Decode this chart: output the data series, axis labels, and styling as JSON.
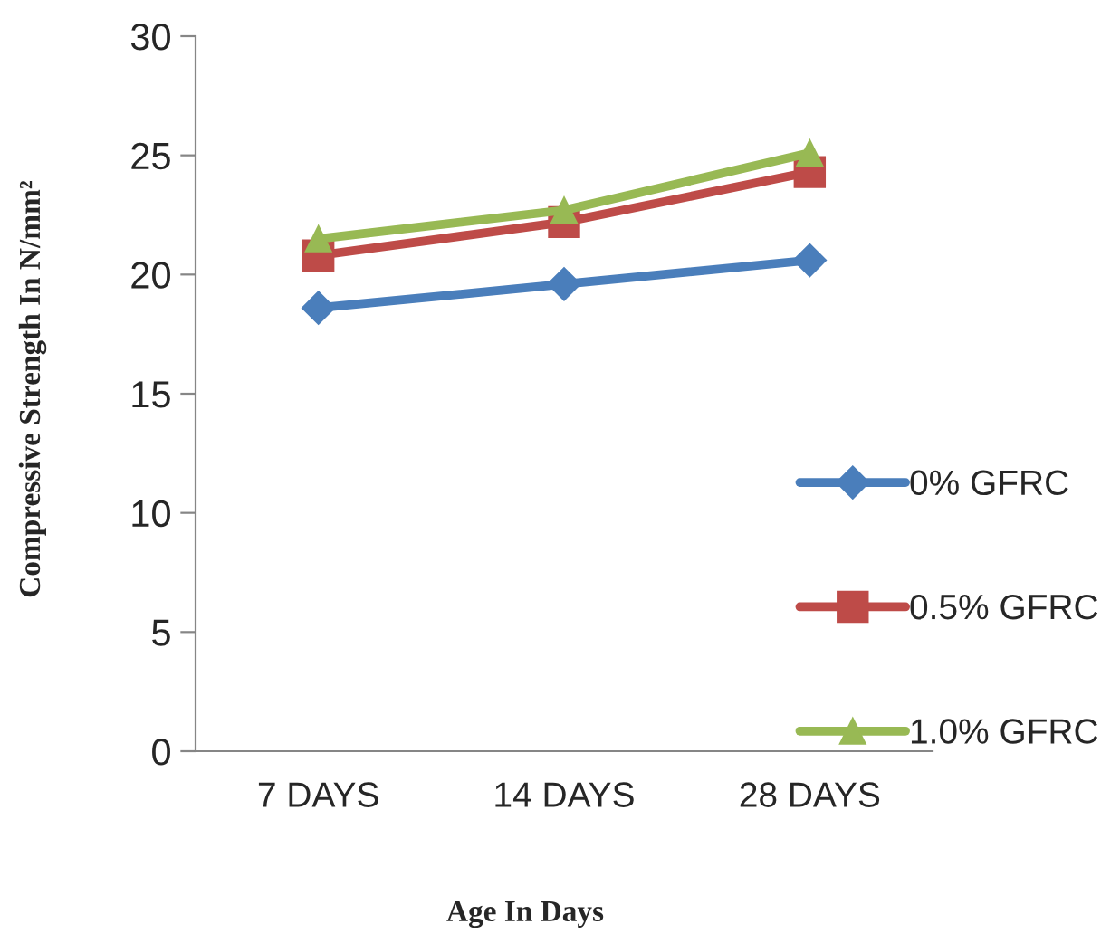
{
  "chart_data": {
    "type": "line",
    "xlabel": "Age In Days",
    "ylabel": "Compressive Strength In N/mm²",
    "categories": [
      "7 DAYS",
      "14 DAYS",
      "28 DAYS"
    ],
    "series": [
      {
        "name": "0% GFRC",
        "color": "#4a7ebb",
        "marker": "diamond",
        "values": [
          18.6,
          19.6,
          20.6
        ]
      },
      {
        "name": "0.5% GFRC",
        "color": "#be4b48",
        "marker": "square",
        "values": [
          20.8,
          22.2,
          24.3
        ]
      },
      {
        "name": "1.0% GFRC",
        "color": "#98b954",
        "marker": "triangle",
        "values": [
          21.5,
          22.7,
          25.1
        ]
      }
    ],
    "ylim": [
      0,
      30
    ],
    "yticks": [
      0,
      5,
      10,
      15,
      20,
      25,
      30
    ],
    "grid": false,
    "legend": "right",
    "line_style": "solid"
  }
}
